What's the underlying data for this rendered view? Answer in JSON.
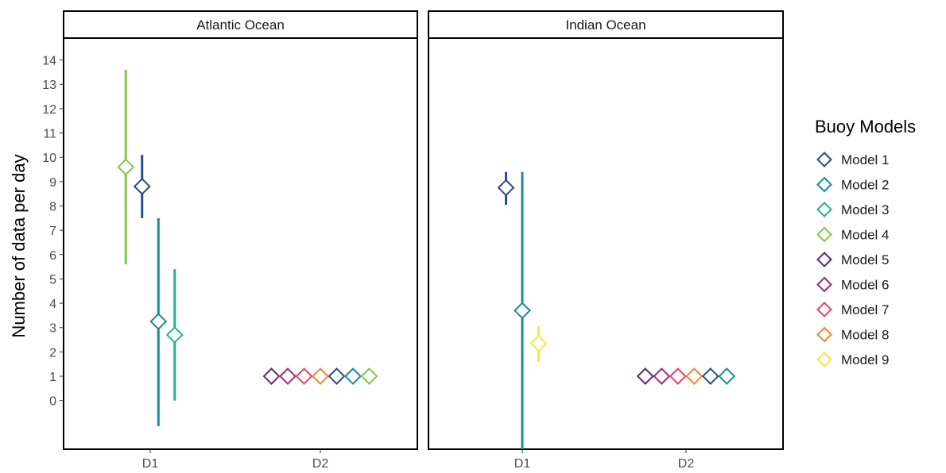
{
  "chart_data": {
    "type": "scatter",
    "ylabel": "Number of data per day",
    "y_ticks": [
      0,
      1,
      2,
      3,
      4,
      5,
      6,
      7,
      8,
      9,
      10,
      11,
      12,
      13,
      14
    ],
    "ylim": [
      -2,
      14.9
    ],
    "x_categories": [
      "D1",
      "D2"
    ],
    "grid": false,
    "legend": {
      "title": "Buoy Models",
      "placement": "right",
      "entries": [
        {
          "name": "Model 1",
          "color": "#2b4a8b"
        },
        {
          "name": "Model 2",
          "color": "#1b8a93"
        },
        {
          "name": "Model 3",
          "color": "#25b38f"
        },
        {
          "name": "Model 4",
          "color": "#86c64a"
        },
        {
          "name": "Model 5",
          "color": "#5a2a6e"
        },
        {
          "name": "Model 6",
          "color": "#9b2a82"
        },
        {
          "name": "Model 7",
          "color": "#e0456a"
        },
        {
          "name": "Model 8",
          "color": "#f2842e"
        },
        {
          "name": "Model 9",
          "color": "#f5e83a"
        }
      ]
    },
    "panels": [
      {
        "title": "Atlantic Ocean",
        "points": [
          {
            "model": "Model 4",
            "x": "D1",
            "dodge": 1,
            "y": 9.6,
            "ymin": 5.6,
            "ymax": 13.6
          },
          {
            "model": "Model 1",
            "x": "D1",
            "dodge": 2,
            "y": 8.8,
            "ymin": 7.5,
            "ymax": 10.1
          },
          {
            "model": "Model 2",
            "x": "D1",
            "dodge": 3,
            "y": 3.25,
            "ymin": -1.05,
            "ymax": 7.5
          },
          {
            "model": "Model 3",
            "x": "D1",
            "dodge": 4,
            "y": 2.7,
            "ymin": 0.0,
            "ymax": 5.4
          },
          {
            "model": "Model 5",
            "x": "D2",
            "dodge": 1,
            "y": 1
          },
          {
            "model": "Model 6",
            "x": "D2",
            "dodge": 2,
            "y": 1
          },
          {
            "model": "Model 7",
            "x": "D2",
            "dodge": 3,
            "y": 1
          },
          {
            "model": "Model 8",
            "x": "D2",
            "dodge": 4,
            "y": 1
          },
          {
            "model": "Model 1",
            "x": "D2",
            "dodge": 5,
            "y": 1
          },
          {
            "model": "Model 2",
            "x": "D2",
            "dodge": 6,
            "y": 1
          },
          {
            "model": "Model 4",
            "x": "D2",
            "dodge": 7,
            "y": 1
          }
        ]
      },
      {
        "title": "Indian Ocean",
        "points": [
          {
            "model": "Model 1",
            "x": "D1",
            "dodge": 1,
            "y": 8.75,
            "ymin": 8.05,
            "ymax": 9.4
          },
          {
            "model": "Model 2",
            "x": "D1",
            "dodge": 2,
            "y": 3.7,
            "ymin": -2.0,
            "ymax": 9.4
          },
          {
            "model": "Model 9",
            "x": "D1",
            "dodge": 3,
            "y": 2.35,
            "ymin": 1.6,
            "ymax": 3.05
          },
          {
            "model": "Model 5",
            "x": "D2",
            "dodge": 1,
            "y": 1
          },
          {
            "model": "Model 6",
            "x": "D2",
            "dodge": 2,
            "y": 1
          },
          {
            "model": "Model 7",
            "x": "D2",
            "dodge": 3,
            "y": 1
          },
          {
            "model": "Model 8",
            "x": "D2",
            "dodge": 4,
            "y": 1
          },
          {
            "model": "Model 1",
            "x": "D2",
            "dodge": 5,
            "y": 1
          },
          {
            "model": "Model 2",
            "x": "D2",
            "dodge": 6,
            "y": 1
          }
        ]
      }
    ]
  }
}
